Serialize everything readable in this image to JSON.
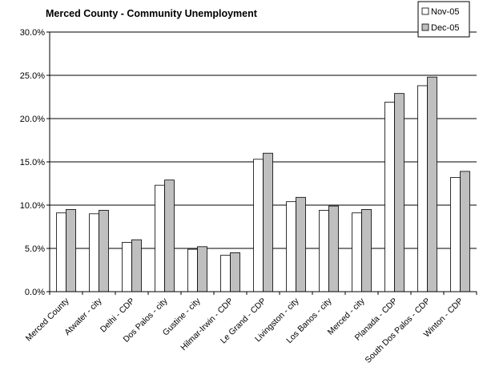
{
  "chart_data": {
    "type": "bar",
    "title": "Merced County - Community Unemployment",
    "xlabel": "",
    "ylabel": "",
    "ylim": [
      0,
      30
    ],
    "yticks": [
      "0.0%",
      "5.0%",
      "10.0%",
      "15.0%",
      "20.0%",
      "25.0%",
      "30.0%"
    ],
    "grid": true,
    "legend_position": "top-right",
    "categories": [
      "Merced County",
      "Atwater - city",
      "Delhi - CDP",
      "Dos Palos - city",
      "Gustine - city",
      "Hilmar-Irwin - CDP",
      "Le Grand - CDP",
      "Livingston - city",
      "Los Banos - city",
      "Merced - city",
      "Planada - CDP",
      "South Dos Palos - CDP",
      "Winton - CDP"
    ],
    "series": [
      {
        "name": "Nov-05",
        "color": "#ffffff",
        "values": [
          9.1,
          9.0,
          5.7,
          12.3,
          4.9,
          4.2,
          15.3,
          10.4,
          9.4,
          9.1,
          21.9,
          23.8,
          13.2
        ]
      },
      {
        "name": "Dec-05",
        "color": "#bfbfbf",
        "values": [
          9.5,
          9.4,
          6.0,
          12.9,
          5.2,
          4.5,
          16.0,
          10.9,
          9.9,
          9.5,
          22.9,
          24.8,
          13.9
        ]
      }
    ]
  }
}
